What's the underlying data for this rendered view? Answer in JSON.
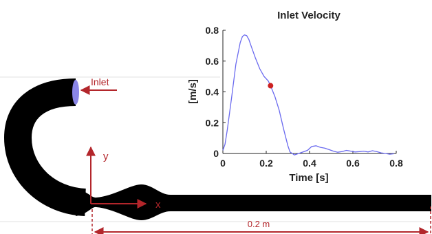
{
  "diagram": {
    "inlet_label": "Inlet",
    "y_axis_label": "y",
    "x_axis_label": "x",
    "length_label": "0.2 m",
    "annotation_color": "#b3262b",
    "vessel_color": "#000000",
    "inlet_face_color": "#8a86e6"
  },
  "chart_data": {
    "type": "line",
    "title": "Inlet Velocity",
    "xlabel": "Time [s]",
    "ylabel": "[m/s]",
    "xlim": [
      0,
      0.8
    ],
    "ylim": [
      0,
      0.8
    ],
    "xticks": [
      "0",
      "0.2",
      "0.4",
      "0.6",
      "0.8"
    ],
    "yticks": [
      "0",
      "0.2",
      "0.4",
      "0.6",
      "0.8"
    ],
    "line_color": "#6a6aef",
    "marker_color": "#cc2222",
    "marker_point": {
      "x": 0.22,
      "y": 0.44
    },
    "x": [
      0,
      0.01,
      0.02,
      0.04,
      0.06,
      0.08,
      0.09,
      0.1,
      0.11,
      0.12,
      0.13,
      0.15,
      0.17,
      0.19,
      0.21,
      0.22,
      0.24,
      0.26,
      0.28,
      0.3,
      0.31,
      0.32,
      0.33,
      0.35,
      0.37,
      0.39,
      0.41,
      0.43,
      0.45,
      0.47,
      0.49,
      0.51,
      0.53,
      0.55,
      0.57,
      0.59,
      0.61,
      0.63,
      0.65,
      0.67,
      0.69,
      0.71,
      0.73,
      0.75,
      0.77,
      0.79
    ],
    "y": [
      0.02,
      0.06,
      0.15,
      0.36,
      0.58,
      0.72,
      0.76,
      0.77,
      0.765,
      0.74,
      0.7,
      0.62,
      0.55,
      0.5,
      0.47,
      0.44,
      0.37,
      0.28,
      0.16,
      0.05,
      0.01,
      0.0,
      -0.01,
      0.0,
      0.01,
      0.02,
      0.045,
      0.05,
      0.04,
      0.035,
      0.025,
      0.015,
      0.008,
      0.012,
      0.02,
      0.015,
      0.01,
      0.012,
      0.015,
      0.01,
      0.018,
      0.012,
      0.004,
      0.0,
      -0.005,
      -0.002
    ]
  }
}
